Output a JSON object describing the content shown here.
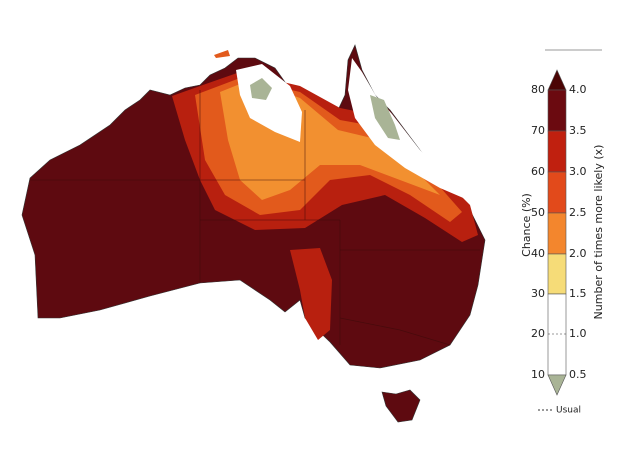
{
  "legend": {
    "chance_title": "Chance (%)",
    "likely_title": "Number of times more likely (x)",
    "chance_labels": [
      "80",
      "70",
      "60",
      "50",
      "40",
      "30",
      "20",
      "10"
    ],
    "likely_labels": [
      "4.0",
      "3.5",
      "3.0",
      "2.5",
      "2.0",
      "1.5",
      "1.0",
      "0.5"
    ],
    "usual_label": "Usual"
  }
}
